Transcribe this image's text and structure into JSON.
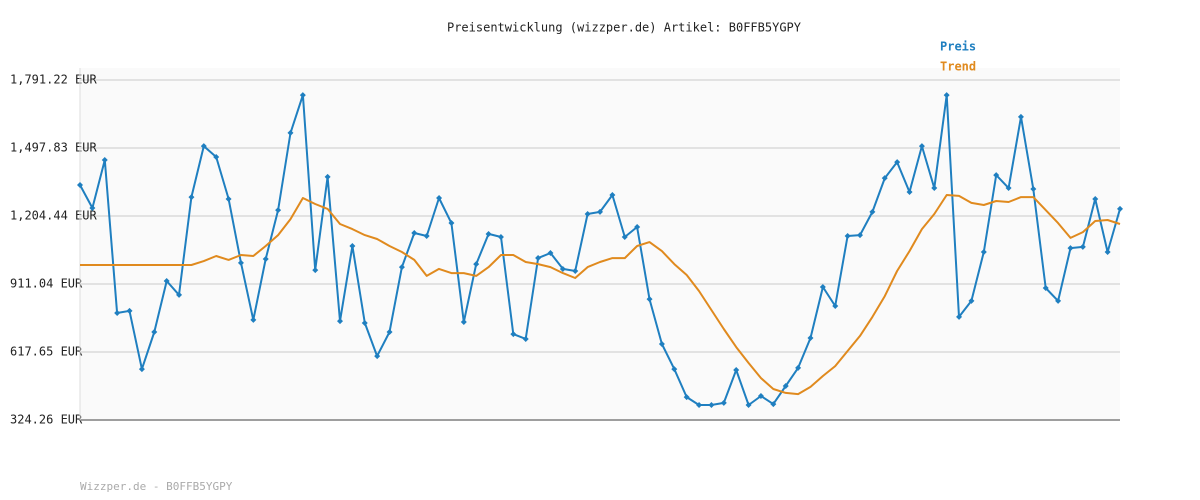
{
  "chart_data": {
    "type": "line",
    "title": "Preisentwicklung (wizzper.de) Artikel: B0FFB5YGPY",
    "footer": "Wizzper.de - B0FFB5YGPY",
    "ylim": [
      324.26,
      1791.22
    ],
    "yticks": [
      {
        "value": 324.26,
        "label": "324.26 EUR"
      },
      {
        "value": 617.65,
        "label": "617.65 EUR"
      },
      {
        "value": 911.04,
        "label": "911.04 EUR"
      },
      {
        "value": 1204.44,
        "label": "1,204.44 EUR"
      },
      {
        "value": 1497.83,
        "label": "1,497.83 EUR"
      },
      {
        "value": 1791.22,
        "label": "1,791.22 EUR"
      }
    ],
    "grid": true,
    "legend": "top-right",
    "series": [
      {
        "name": "Preis",
        "color": "#1f7fc0",
        "markers": true,
        "values": [
          1338,
          1239,
          1446,
          786,
          795,
          544,
          704,
          924,
          864,
          1286,
          1506,
          1459,
          1278,
          1002,
          756,
          1019,
          1230,
          1563,
          1726,
          971,
          1373,
          751,
          1075,
          743,
          600,
          704,
          984,
          1131,
          1118,
          1282,
          1174,
          747,
          997,
          1127,
          1114,
          695,
          674,
          1023,
          1045,
          976,
          967,
          1213,
          1222,
          1295,
          1114,
          1157,
          846,
          652,
          544,
          423,
          389,
          389,
          398,
          540,
          389,
          428,
          393,
          471,
          549,
          678,
          898,
          816,
          1118,
          1122,
          1222,
          1368,
          1437,
          1308,
          1506,
          1325,
          1726,
          769,
          838,
          1049,
          1381,
          1325,
          1632,
          1321,
          894,
          838,
          1066,
          1071,
          1278,
          1049,
          1235
        ]
      },
      {
        "name": "Trend",
        "color": "#e08a1e",
        "markers": false,
        "values": [
          993,
          993,
          993,
          993,
          993,
          993,
          993,
          993,
          993,
          993,
          1010,
          1032,
          1015,
          1036,
          1032,
          1075,
          1122,
          1191,
          1282,
          1256,
          1235,
          1170,
          1148,
          1122,
          1105,
          1075,
          1049,
          1015,
          946,
          976,
          958,
          958,
          946,
          984,
          1036,
          1036,
          1006,
          997,
          984,
          958,
          937,
          984,
          1006,
          1023,
          1023,
          1075,
          1092,
          1053,
          997,
          950,
          881,
          799,
          717,
          639,
          570,
          505,
          458,
          441,
          436,
          467,
          514,
          557,
          622,
          687,
          769,
          859,
          967,
          1053,
          1148,
          1213,
          1295,
          1291,
          1261,
          1252,
          1269,
          1265,
          1286,
          1286,
          1230,
          1174,
          1110,
          1135,
          1183,
          1187,
          1170
        ]
      }
    ]
  }
}
